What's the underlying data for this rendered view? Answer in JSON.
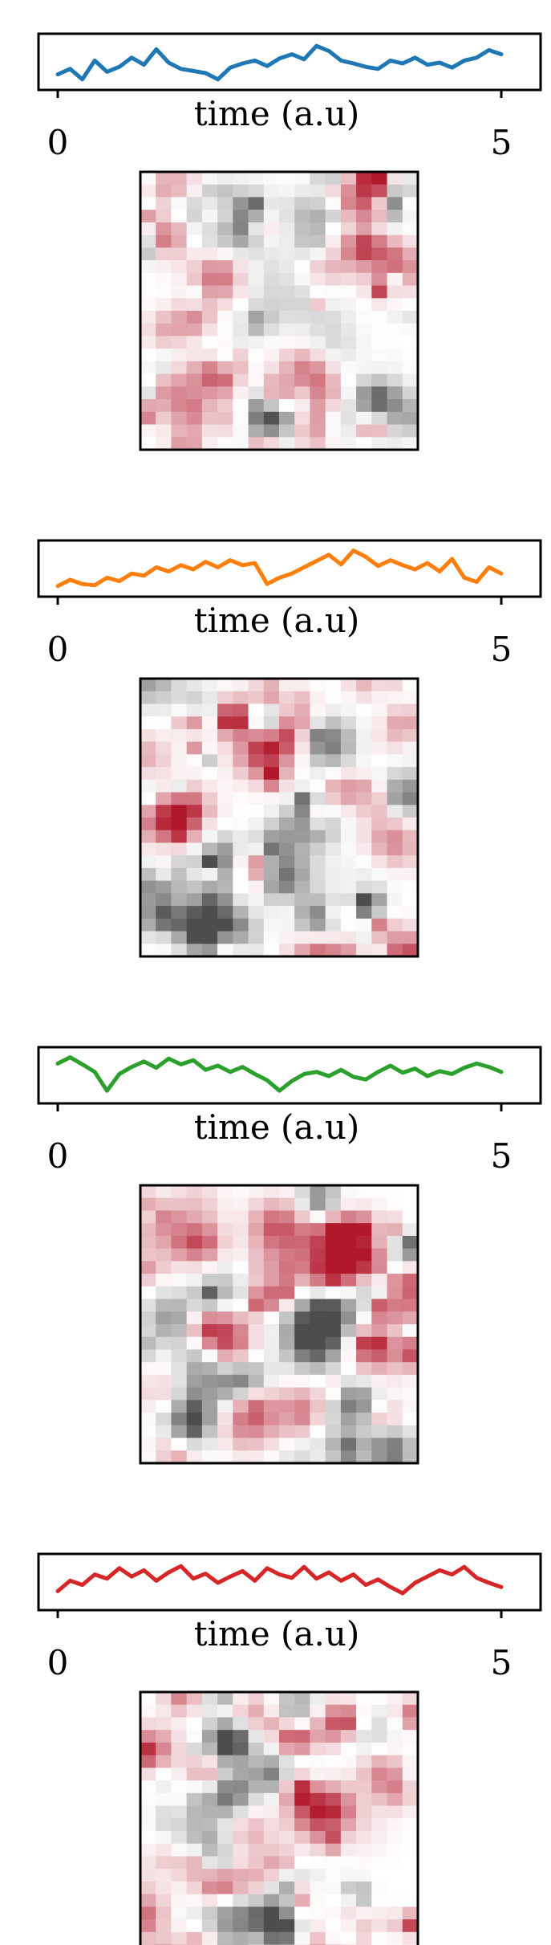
{
  "chart_data": [
    {
      "type": "line",
      "xlabel": "time (a.u)",
      "xlim": [
        0,
        5
      ],
      "x_ticks": [
        "0",
        "5"
      ],
      "series": [
        {
          "color": "#1f77b4",
          "values": [
            0.22,
            0.35,
            0.1,
            0.55,
            0.28,
            0.4,
            0.62,
            0.45,
            0.82,
            0.5,
            0.35,
            0.3,
            0.25,
            0.1,
            0.38,
            0.48,
            0.55,
            0.42,
            0.6,
            0.7,
            0.58,
            0.9,
            0.78,
            0.55,
            0.48,
            0.4,
            0.35,
            0.55,
            0.48,
            0.62,
            0.45,
            0.5,
            0.38,
            0.55,
            0.62,
            0.8,
            0.7
          ]
        }
      ],
      "heatmap": {
        "cmap": "RdGy_r",
        "rows": 22,
        "cols": 18
      }
    },
    {
      "type": "line",
      "xlabel": "time (a.u)",
      "xlim": [
        0,
        5
      ],
      "x_ticks": [
        "0",
        "5"
      ],
      "series": [
        {
          "color": "#ff7f0e",
          "values": [
            0.1,
            0.25,
            0.15,
            0.12,
            0.3,
            0.22,
            0.4,
            0.35,
            0.55,
            0.45,
            0.6,
            0.5,
            0.68,
            0.55,
            0.72,
            0.6,
            0.65,
            0.15,
            0.3,
            0.4,
            0.55,
            0.7,
            0.85,
            0.62,
            0.95,
            0.8,
            0.58,
            0.72,
            0.6,
            0.5,
            0.65,
            0.45,
            0.75,
            0.3,
            0.2,
            0.55,
            0.4
          ]
        }
      ],
      "heatmap": {
        "cmap": "RdGy_r",
        "rows": 22,
        "cols": 18
      }
    },
    {
      "type": "line",
      "xlabel": "time (a.u)",
      "xlim": [
        0,
        5
      ],
      "x_ticks": [
        "0",
        "5"
      ],
      "series": [
        {
          "color": "#2ca02c",
          "values": [
            0.8,
            0.95,
            0.78,
            0.6,
            0.15,
            0.55,
            0.72,
            0.85,
            0.7,
            0.92,
            0.78,
            0.88,
            0.65,
            0.75,
            0.6,
            0.72,
            0.55,
            0.4,
            0.15,
            0.38,
            0.55,
            0.6,
            0.5,
            0.65,
            0.48,
            0.42,
            0.6,
            0.75,
            0.58,
            0.68,
            0.5,
            0.62,
            0.55,
            0.7,
            0.8,
            0.72,
            0.6
          ]
        }
      ],
      "heatmap": {
        "cmap": "RdGy_r",
        "rows": 22,
        "cols": 18
      }
    },
    {
      "type": "line",
      "xlabel": "time (a.u)",
      "xlim": [
        0,
        5
      ],
      "x_ticks": [
        "0",
        "5"
      ],
      "series": [
        {
          "color": "#d62728",
          "values": [
            0.3,
            0.55,
            0.45,
            0.7,
            0.6,
            0.85,
            0.65,
            0.8,
            0.55,
            0.75,
            0.9,
            0.6,
            0.72,
            0.5,
            0.65,
            0.78,
            0.55,
            0.85,
            0.7,
            0.62,
            0.88,
            0.6,
            0.75,
            0.55,
            0.7,
            0.45,
            0.58,
            0.4,
            0.25,
            0.5,
            0.65,
            0.8,
            0.7,
            0.88,
            0.62,
            0.5,
            0.4
          ]
        }
      ],
      "heatmap": {
        "cmap": "RdGy_r",
        "rows": 22,
        "cols": 18
      }
    }
  ]
}
